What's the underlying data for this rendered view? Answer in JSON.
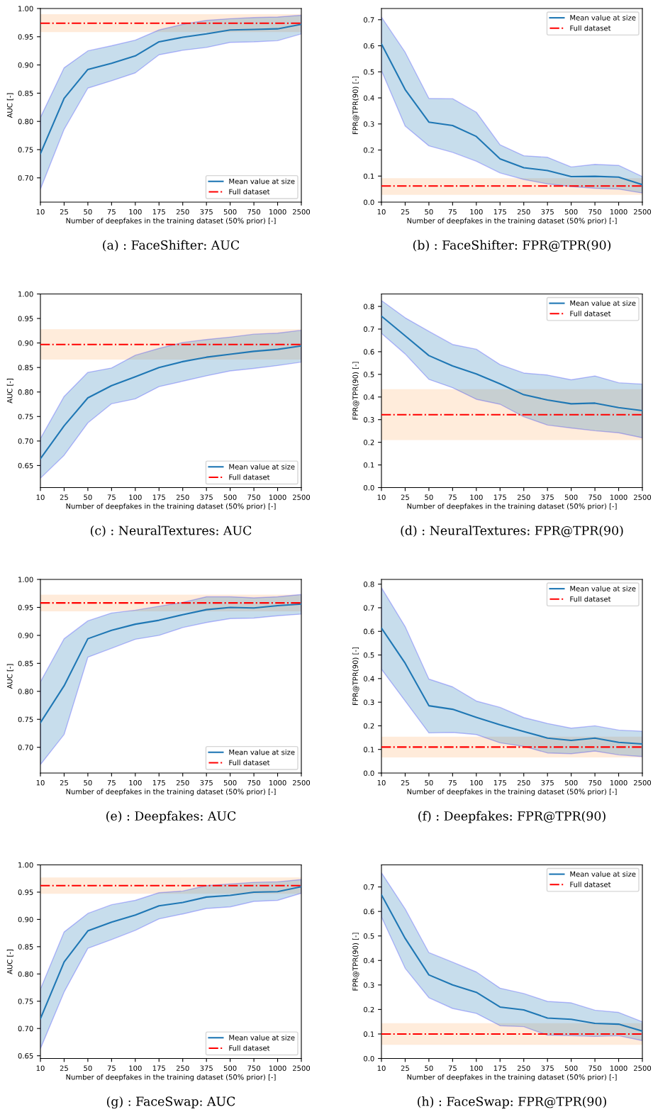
{
  "chart_data": [
    {
      "type": "line",
      "title": "(a) : FaceShifter: AUC",
      "xlabel": "Number of deepfakes in the training dataset (50% prior) [-]",
      "ylabel": "AUC [-]",
      "categories": [
        "10",
        "25",
        "50",
        "75",
        "100",
        "175",
        "250",
        "375",
        "500",
        "750",
        "1000",
        "2500"
      ],
      "series": [
        {
          "name": "Mean value at size",
          "color": "#1f77b4",
          "values": [
            0.743,
            0.841,
            0.892,
            0.903,
            0.916,
            0.941,
            0.949,
            0.955,
            0.962,
            0.963,
            0.964,
            0.972
          ],
          "lower": [
            0.68,
            0.786,
            0.859,
            0.872,
            0.886,
            0.918,
            0.926,
            0.931,
            0.94,
            0.941,
            0.943,
            0.955
          ],
          "upper": [
            0.807,
            0.895,
            0.925,
            0.934,
            0.944,
            0.962,
            0.972,
            0.979,
            0.982,
            0.984,
            0.985,
            0.988
          ]
        }
      ],
      "ref_lines": [
        {
          "axis": "y",
          "value": 0.974,
          "label": "Full dataset",
          "color": "#ff0000",
          "line_style": "dashdot"
        }
      ],
      "bands": [
        {
          "axis": "y",
          "from": 0.959,
          "to": 0.989,
          "color": "#ff7f0e"
        }
      ],
      "ylim": [
        0.657,
        1.0
      ],
      "yticks": [
        {
          "value": 0.7,
          "label": "0.70"
        },
        {
          "value": 0.75,
          "label": "0.75"
        },
        {
          "value": 0.8,
          "label": "0.80"
        },
        {
          "value": 0.85,
          "label": "0.85"
        },
        {
          "value": 0.9,
          "label": "0.90"
        },
        {
          "value": 0.95,
          "label": "0.95"
        },
        {
          "value": 1.0,
          "label": "1.00"
        }
      ],
      "legend": "bottom right",
      "line_style": "solid"
    },
    {
      "type": "line",
      "title": "(b) : FaceShifter: FPR@TPR(90)",
      "xlabel": "Number of deepfakes in the training dataset (50% prior) [-]",
      "ylabel": "FPR@TPR(90) [-]",
      "categories": [
        "10",
        "25",
        "50",
        "75",
        "100",
        "175",
        "250",
        "375",
        "500",
        "750",
        "1000",
        "2500"
      ],
      "series": [
        {
          "name": "Mean value at size",
          "color": "#1f77b4",
          "values": [
            0.607,
            0.432,
            0.307,
            0.294,
            0.252,
            0.166,
            0.132,
            0.121,
            0.098,
            0.099,
            0.096,
            0.067
          ],
          "lower": [
            0.505,
            0.292,
            0.216,
            0.191,
            0.157,
            0.112,
            0.087,
            0.07,
            0.06,
            0.053,
            0.05,
            0.035
          ],
          "upper": [
            0.71,
            0.575,
            0.398,
            0.397,
            0.345,
            0.22,
            0.178,
            0.172,
            0.135,
            0.145,
            0.141,
            0.098
          ]
        }
      ],
      "ref_lines": [
        {
          "axis": "y",
          "value": 0.062,
          "label": "Full dataset",
          "color": "#ff0000",
          "line_style": "dashdot"
        }
      ],
      "bands": [
        {
          "axis": "y",
          "from": 0.03,
          "to": 0.09,
          "color": "#ff7f0e"
        }
      ],
      "ylim": [
        0,
        0.743
      ],
      "yticks": [
        {
          "value": 0,
          "label": "0.0"
        },
        {
          "value": 0.1,
          "label": "0.1"
        },
        {
          "value": 0.2,
          "label": "0.2"
        },
        {
          "value": 0.3,
          "label": "0.3"
        },
        {
          "value": 0.4,
          "label": "0.4"
        },
        {
          "value": 0.5,
          "label": "0.5"
        },
        {
          "value": 0.6,
          "label": "0.6"
        },
        {
          "value": 0.7,
          "label": "0.7"
        }
      ],
      "legend": "top right",
      "line_style": "solid"
    },
    {
      "type": "line",
      "title": "(c) : NeuralTextures: AUC",
      "xlabel": "Number of deepfakes in the training dataset (50% prior) [-]",
      "ylabel": "AUC [-]",
      "categories": [
        "10",
        "25",
        "50",
        "75",
        "100",
        "175",
        "250",
        "375",
        "500",
        "750",
        "1000",
        "2500"
      ],
      "series": [
        {
          "name": "Mean value at size",
          "color": "#1f77b4",
          "values": [
            0.664,
            0.731,
            0.788,
            0.813,
            0.831,
            0.85,
            0.862,
            0.871,
            0.877,
            0.883,
            0.887,
            0.894
          ],
          "lower": [
            0.624,
            0.671,
            0.737,
            0.776,
            0.786,
            0.811,
            0.822,
            0.833,
            0.843,
            0.848,
            0.854,
            0.861
          ],
          "upper": [
            0.705,
            0.791,
            0.84,
            0.849,
            0.875,
            0.889,
            0.901,
            0.907,
            0.912,
            0.918,
            0.92,
            0.926
          ]
        }
      ],
      "ref_lines": [
        {
          "axis": "y",
          "value": 0.897,
          "label": "Full dataset",
          "color": "#ff0000",
          "line_style": "dashdot"
        }
      ],
      "bands": [
        {
          "axis": "y",
          "from": 0.867,
          "to": 0.927,
          "color": "#ff7f0e"
        }
      ],
      "ylim": [
        0.605,
        1.0
      ],
      "yticks": [
        {
          "value": 0.65,
          "label": "0.65"
        },
        {
          "value": 0.7,
          "label": "0.70"
        },
        {
          "value": 0.75,
          "label": "0.75"
        },
        {
          "value": 0.8,
          "label": "0.80"
        },
        {
          "value": 0.85,
          "label": "0.85"
        },
        {
          "value": 0.9,
          "label": "0.90"
        },
        {
          "value": 0.95,
          "label": "0.95"
        },
        {
          "value": 1.0,
          "label": "1.00"
        }
      ],
      "legend": "bottom right",
      "line_style": "solid"
    },
    {
      "type": "line",
      "title": "(d) : NeuralTextures: FPR@TPR(90)",
      "xlabel": "Number of deepfakes in the training dataset (50% prior) [-]",
      "ylabel": "FPR@TPR(90) [-]",
      "categories": [
        "10",
        "25",
        "50",
        "75",
        "100",
        "175",
        "250",
        "375",
        "500",
        "750",
        "1000",
        "2500"
      ],
      "series": [
        {
          "name": "Mean value at size",
          "color": "#1f77b4",
          "values": [
            0.757,
            0.67,
            0.583,
            0.537,
            0.502,
            0.458,
            0.41,
            0.387,
            0.37,
            0.373,
            0.353,
            0.34
          ],
          "lower": [
            0.681,
            0.59,
            0.478,
            0.441,
            0.39,
            0.368,
            0.313,
            0.276,
            0.263,
            0.251,
            0.242,
            0.22
          ],
          "upper": [
            0.826,
            0.75,
            0.69,
            0.632,
            0.611,
            0.543,
            0.506,
            0.497,
            0.476,
            0.493,
            0.463,
            0.457
          ]
        }
      ],
      "ref_lines": [
        {
          "axis": "y",
          "value": 0.322,
          "label": "Full dataset",
          "color": "#ff0000",
          "line_style": "dashdot"
        }
      ],
      "bands": [
        {
          "axis": "y",
          "from": 0.212,
          "to": 0.432,
          "color": "#ff7f0e"
        }
      ],
      "ylim": [
        0,
        0.855
      ],
      "yticks": [
        {
          "value": 0,
          "label": "0.0"
        },
        {
          "value": 0.1,
          "label": "0.1"
        },
        {
          "value": 0.2,
          "label": "0.2"
        },
        {
          "value": 0.3,
          "label": "0.3"
        },
        {
          "value": 0.4,
          "label": "0.4"
        },
        {
          "value": 0.5,
          "label": "0.5"
        },
        {
          "value": 0.6,
          "label": "0.6"
        },
        {
          "value": 0.7,
          "label": "0.7"
        },
        {
          "value": 0.8,
          "label": "0.8"
        }
      ],
      "legend": "top right",
      "line_style": "solid"
    },
    {
      "type": "line",
      "title": "(e) : Deepfakes: AUC",
      "xlabel": "Number of deepfakes in the training dataset (50% prior) [-]",
      "ylabel": "AUC [-]",
      "categories": [
        "10",
        "25",
        "50",
        "75",
        "100",
        "175",
        "250",
        "375",
        "500",
        "750",
        "1000",
        "2500"
      ],
      "series": [
        {
          "name": "Mean value at size",
          "color": "#1f77b4",
          "values": [
            0.744,
            0.81,
            0.894,
            0.909,
            0.92,
            0.927,
            0.937,
            0.946,
            0.95,
            0.949,
            0.953,
            0.956
          ],
          "lower": [
            0.669,
            0.723,
            0.861,
            0.877,
            0.893,
            0.9,
            0.914,
            0.923,
            0.93,
            0.931,
            0.935,
            0.938
          ],
          "upper": [
            0.817,
            0.894,
            0.926,
            0.94,
            0.945,
            0.952,
            0.959,
            0.969,
            0.969,
            0.967,
            0.969,
            0.973
          ]
        }
      ],
      "ref_lines": [
        {
          "axis": "y",
          "value": 0.958,
          "label": "Full dataset",
          "color": "#ff0000",
          "line_style": "dashdot"
        }
      ],
      "bands": [
        {
          "axis": "y",
          "from": 0.944,
          "to": 0.972,
          "color": "#ff7f0e"
        }
      ],
      "ylim": [
        0.654,
        1.0
      ],
      "yticks": [
        {
          "value": 0.7,
          "label": "0.70"
        },
        {
          "value": 0.75,
          "label": "0.75"
        },
        {
          "value": 0.8,
          "label": "0.80"
        },
        {
          "value": 0.85,
          "label": "0.85"
        },
        {
          "value": 0.9,
          "label": "0.90"
        },
        {
          "value": 0.95,
          "label": "0.95"
        },
        {
          "value": 1.0,
          "label": "1.00"
        }
      ],
      "legend": "bottom right",
      "line_style": "solid"
    },
    {
      "type": "line",
      "title": "(f) : Deepfakes: FPR@TPR(90)",
      "xlabel": "Number of deepfakes in the training dataset (50% prior) [-]",
      "ylabel": "FPR@TPR(90) [-]",
      "categories": [
        "10",
        "25",
        "50",
        "75",
        "100",
        "175",
        "250",
        "375",
        "500",
        "750",
        "1000",
        "2500"
      ],
      "series": [
        {
          "name": "Mean value at size",
          "color": "#1f77b4",
          "values": [
            0.614,
            0.465,
            0.285,
            0.27,
            0.236,
            0.204,
            0.176,
            0.148,
            0.138,
            0.148,
            0.13,
            0.123
          ],
          "lower": [
            0.44,
            0.305,
            0.17,
            0.172,
            0.163,
            0.128,
            0.113,
            0.085,
            0.082,
            0.093,
            0.077,
            0.07
          ],
          "upper": [
            0.785,
            0.62,
            0.398,
            0.365,
            0.305,
            0.278,
            0.235,
            0.21,
            0.19,
            0.2,
            0.182,
            0.177
          ]
        }
      ],
      "ref_lines": [
        {
          "axis": "y",
          "value": 0.11,
          "label": "Full dataset",
          "color": "#ff0000",
          "line_style": "dashdot"
        }
      ],
      "bands": [
        {
          "axis": "y",
          "from": 0.068,
          "to": 0.152,
          "color": "#ff7f0e"
        }
      ],
      "ylim": [
        0,
        0.82
      ],
      "yticks": [
        {
          "value": 0,
          "label": "0.0"
        },
        {
          "value": 0.1,
          "label": "0.1"
        },
        {
          "value": 0.2,
          "label": "0.2"
        },
        {
          "value": 0.3,
          "label": "0.3"
        },
        {
          "value": 0.4,
          "label": "0.4"
        },
        {
          "value": 0.5,
          "label": "0.5"
        },
        {
          "value": 0.6,
          "label": "0.6"
        },
        {
          "value": 0.7,
          "label": "0.7"
        },
        {
          "value": 0.8,
          "label": "0.8"
        }
      ],
      "legend": "top right",
      "line_style": "solid"
    },
    {
      "type": "line",
      "title": "(g) : FaceSwap: AUC",
      "xlabel": "Number of deepfakes in the training dataset (50% prior) [-]",
      "ylabel": "AUC [-]",
      "categories": [
        "10",
        "25",
        "50",
        "75",
        "100",
        "175",
        "250",
        "375",
        "500",
        "750",
        "1000",
        "2500"
      ],
      "series": [
        {
          "name": "Mean value at size",
          "color": "#1f77b4",
          "values": [
            0.718,
            0.822,
            0.879,
            0.895,
            0.908,
            0.925,
            0.931,
            0.941,
            0.944,
            0.95,
            0.951,
            0.96
          ],
          "lower": [
            0.663,
            0.767,
            0.847,
            0.863,
            0.88,
            0.901,
            0.91,
            0.92,
            0.923,
            0.933,
            0.935,
            0.948
          ],
          "upper": [
            0.772,
            0.877,
            0.911,
            0.927,
            0.935,
            0.949,
            0.952,
            0.962,
            0.965,
            0.968,
            0.969,
            0.973
          ]
        }
      ],
      "ref_lines": [
        {
          "axis": "y",
          "value": 0.962,
          "label": "Full dataset",
          "color": "#ff0000",
          "line_style": "dashdot"
        }
      ],
      "bands": [
        {
          "axis": "y",
          "from": 0.948,
          "to": 0.976,
          "color": "#ff7f0e"
        }
      ],
      "ylim": [
        0.645,
        1.0
      ],
      "yticks": [
        {
          "value": 0.65,
          "label": "0.65"
        },
        {
          "value": 0.7,
          "label": "0.70"
        },
        {
          "value": 0.75,
          "label": "0.75"
        },
        {
          "value": 0.8,
          "label": "0.80"
        },
        {
          "value": 0.85,
          "label": "0.85"
        },
        {
          "value": 0.9,
          "label": "0.90"
        },
        {
          "value": 0.95,
          "label": "0.95"
        },
        {
          "value": 1.0,
          "label": "1.00"
        }
      ],
      "legend": "bottom right",
      "line_style": "solid"
    },
    {
      "type": "line",
      "title": "(h) : FaceSwap: FPR@TPR(90)",
      "xlabel": "Number of deepfakes in the training dataset (50% prior) [-]",
      "ylabel": "FPR@TPR(90) [-]",
      "categories": [
        "10",
        "25",
        "50",
        "75",
        "100",
        "175",
        "250",
        "375",
        "500",
        "750",
        "1000",
        "2500"
      ],
      "series": [
        {
          "name": "Mean value at size",
          "color": "#1f77b4",
          "values": [
            0.668,
            0.49,
            0.341,
            0.3,
            0.27,
            0.21,
            0.198,
            0.165,
            0.16,
            0.143,
            0.14,
            0.112
          ],
          "lower": [
            0.578,
            0.368,
            0.248,
            0.204,
            0.184,
            0.134,
            0.13,
            0.095,
            0.093,
            0.09,
            0.093,
            0.073
          ],
          "upper": [
            0.758,
            0.61,
            0.432,
            0.393,
            0.353,
            0.287,
            0.265,
            0.233,
            0.227,
            0.197,
            0.188,
            0.15
          ]
        }
      ],
      "ref_lines": [
        {
          "axis": "y",
          "value": 0.1,
          "label": "Full dataset",
          "color": "#ff0000",
          "line_style": "dashdot"
        }
      ],
      "bands": [
        {
          "axis": "y",
          "from": 0.058,
          "to": 0.142,
          "color": "#ff7f0e"
        }
      ],
      "ylim": [
        0,
        0.79
      ],
      "yticks": [
        {
          "value": 0,
          "label": "0.0"
        },
        {
          "value": 0.1,
          "label": "0.1"
        },
        {
          "value": 0.2,
          "label": "0.2"
        },
        {
          "value": 0.3,
          "label": "0.3"
        },
        {
          "value": 0.4,
          "label": "0.4"
        },
        {
          "value": 0.5,
          "label": "0.5"
        },
        {
          "value": 0.6,
          "label": "0.6"
        },
        {
          "value": 0.7,
          "label": "0.7"
        }
      ],
      "legend": "top right",
      "line_style": "solid"
    }
  ]
}
